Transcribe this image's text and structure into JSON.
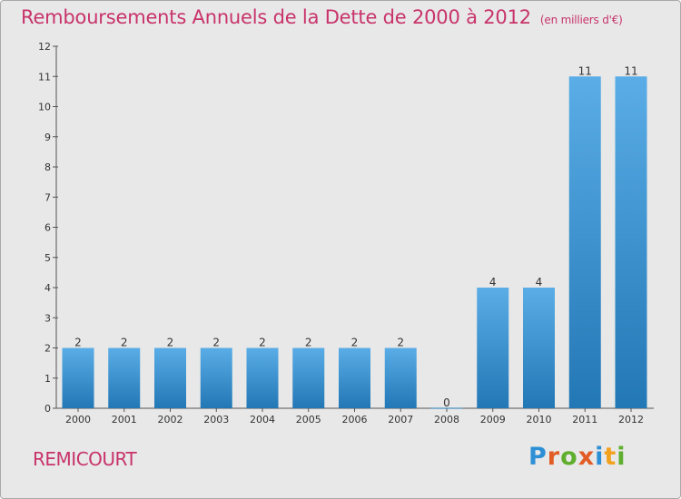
{
  "header": {
    "title": "Remboursements Annuels de la Dette de 2000 à 2012",
    "unit": "(en milliers d'€)"
  },
  "footer": {
    "commune": "REMICOURT",
    "logo": "Proxiti"
  },
  "colors": {
    "title": "#c8336a",
    "bar_light": "#5aade6",
    "bar_dark": "#2277b5",
    "background": "#e8e8e8",
    "logo_letters": [
      "#2d8fd5",
      "#e25d25",
      "#5fae2e",
      "#e25d25",
      "#2d8fd5",
      "#f2a11c",
      "#5fae2e"
    ]
  },
  "chart_data": {
    "type": "bar",
    "title": "Remboursements Annuels de la Dette de 2000 à 2012",
    "xlabel": "",
    "ylabel": "",
    "categories": [
      "2000",
      "2001",
      "2002",
      "2003",
      "2004",
      "2005",
      "2006",
      "2007",
      "2008",
      "2009",
      "2010",
      "2011",
      "2012"
    ],
    "values": [
      2,
      2,
      2,
      2,
      2,
      2,
      2,
      2,
      0,
      4,
      4,
      11,
      11
    ],
    "data_labels": [
      "2",
      "2",
      "2",
      "2",
      "2",
      "2",
      "2",
      "2",
      "0",
      "4",
      "4",
      "11",
      "11"
    ],
    "y_ticks": [
      "0",
      "1",
      "2",
      "3",
      "4",
      "5",
      "6",
      "7",
      "8",
      "9",
      "10",
      "11",
      "12"
    ],
    "ylim": [
      0,
      12
    ],
    "grid": false,
    "legend": "none"
  }
}
